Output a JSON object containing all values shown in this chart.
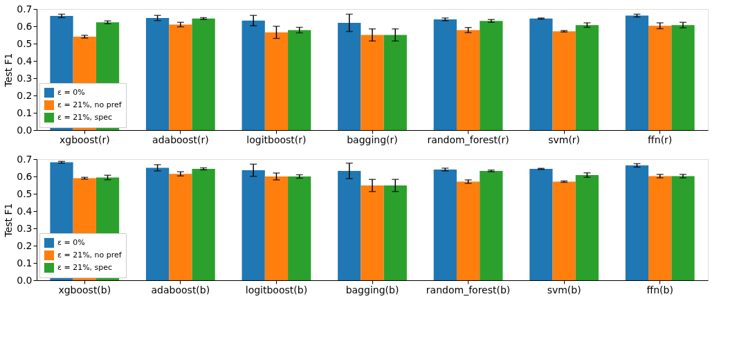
{
  "chart_data": [
    {
      "type": "bar",
      "ylabel": "Test F1",
      "categories": [
        "xgboost(r)",
        "adaboost(r)",
        "logitboost(r)",
        "bagging(r)",
        "random_forest(r)",
        "svm(r)",
        "ffn(r)"
      ],
      "ylim": [
        0,
        0.7
      ],
      "yticks": [
        {
          "value": 0,
          "label": "0.0"
        },
        0.1,
        0.2,
        0.3,
        0.4,
        0.5,
        0.6,
        0.7
      ],
      "grid": false,
      "legend": "bottom left",
      "series": [
        {
          "name": "ε = 0%",
          "color": "#1f77b4",
          "values": [
            0.66,
            0.648,
            0.633,
            0.62,
            0.64,
            0.645,
            0.662
          ],
          "errors": [
            0.01,
            0.015,
            0.03,
            0.05,
            0.008,
            0.003,
            0.008
          ]
        },
        {
          "name": "ε = 21%, no pref",
          "color": "#ff7f0e",
          "values": [
            0.54,
            0.61,
            0.565,
            0.55,
            0.578,
            0.571,
            0.603
          ],
          "errors": [
            0.008,
            0.013,
            0.035,
            0.035,
            0.015,
            0.004,
            0.017
          ]
        },
        {
          "name": "ε = 21%, spec",
          "color": "#2ca02c",
          "values": [
            0.623,
            0.645,
            0.578,
            0.55,
            0.631,
            0.607,
            0.607
          ],
          "errors": [
            0.008,
            0.005,
            0.016,
            0.035,
            0.008,
            0.013,
            0.016
          ]
        }
      ]
    },
    {
      "type": "bar",
      "ylabel": "Test F1",
      "categories": [
        "xgboost(b)",
        "adaboost(b)",
        "logitboost(b)",
        "bagging(b)",
        "random_forest(b)",
        "svm(b)",
        "ffn(b)"
      ],
      "ylim": [
        0,
        0.7
      ],
      "yticks": [
        {
          "value": 0,
          "label": "0.0"
        },
        0.1,
        0.2,
        0.3,
        0.4,
        0.5,
        0.6,
        0.7
      ],
      "grid": false,
      "legend": "bottom left",
      "series": [
        {
          "name": "ε = 0%",
          "color": "#1f77b4",
          "values": [
            0.682,
            0.65,
            0.636,
            0.632,
            0.64,
            0.644,
            0.664
          ],
          "errors": [
            0.005,
            0.018,
            0.035,
            0.045,
            0.008,
            0.003,
            0.01
          ]
        },
        {
          "name": "ε = 21%, no pref",
          "color": "#ff7f0e",
          "values": [
            0.59,
            0.615,
            0.6,
            0.548,
            0.57,
            0.57,
            0.602
          ],
          "errors": [
            0.005,
            0.012,
            0.02,
            0.035,
            0.01,
            0.004,
            0.01
          ]
        },
        {
          "name": "ε = 21%, spec",
          "color": "#2ca02c",
          "values": [
            0.594,
            0.644,
            0.6,
            0.548,
            0.632,
            0.608,
            0.602
          ],
          "errors": [
            0.013,
            0.006,
            0.01,
            0.035,
            0.005,
            0.013,
            0.01
          ]
        }
      ]
    }
  ]
}
